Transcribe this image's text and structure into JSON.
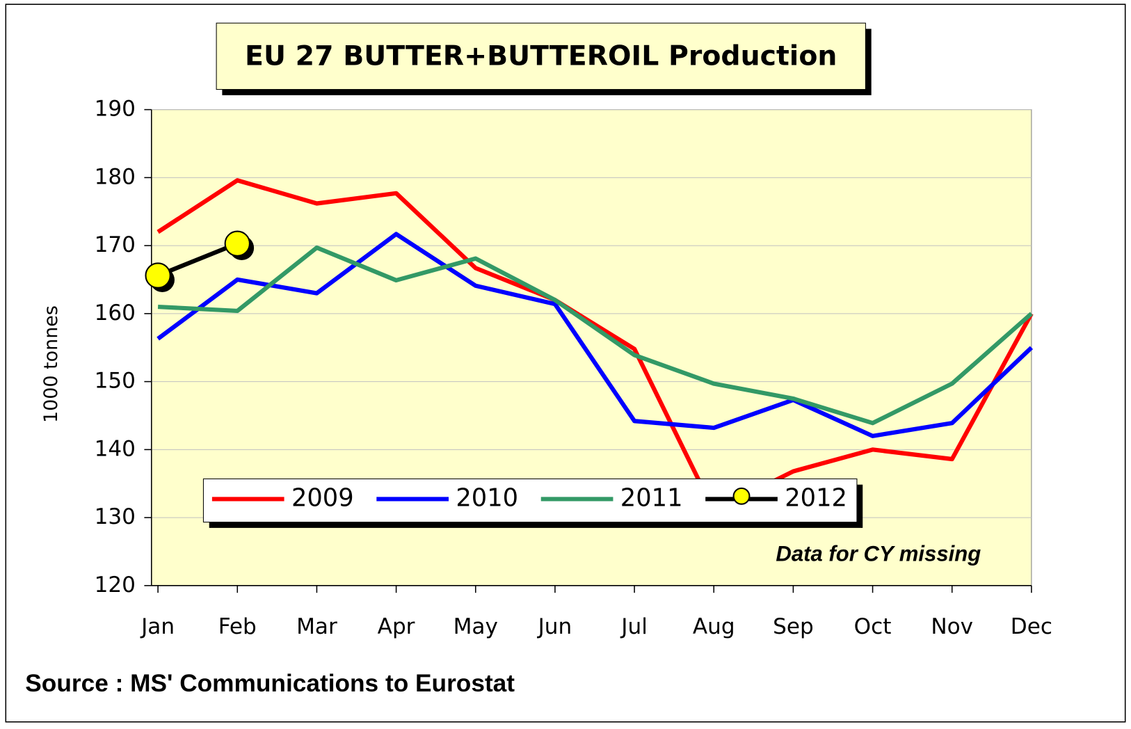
{
  "chart_data": {
    "type": "line",
    "title": "EU 27 BUTTER+BUTTEROIL Production",
    "y_label": "1000 tonnes",
    "annotation": "Data for CY missing",
    "source": "Source : MS' Communications to Eurostat",
    "categories": [
      "Jan",
      "Feb",
      "Mar",
      "Apr",
      "May",
      "Jun",
      "Jul",
      "Aug",
      "Sep",
      "Oct",
      "Nov",
      "Dec"
    ],
    "series": [
      {
        "name": "2009",
        "color": "#ff0000",
        "values": [
          172,
          179.6,
          176.2,
          177.7,
          166.7,
          162,
          154.8,
          131,
          136.8,
          140,
          138.6,
          160
        ]
      },
      {
        "name": "2010",
        "color": "#0000ff",
        "values": [
          156.3,
          165,
          163,
          171.7,
          164.1,
          161.4,
          144.2,
          143.2,
          147.3,
          142,
          143.9,
          155
        ]
      },
      {
        "name": "2011",
        "color": "#339966",
        "values": [
          161,
          160.4,
          169.7,
          164.9,
          168.1,
          162,
          153.9,
          149.7,
          147.5,
          143.9,
          149.7,
          160
        ]
      },
      {
        "name": "2012",
        "color": "#000000",
        "marker_color": "#ffff00",
        "values": [
          165.6,
          170.3,
          null,
          null,
          null,
          null,
          null,
          null,
          null,
          null,
          null,
          null
        ]
      }
    ],
    "ylim": [
      120,
      190
    ],
    "yticks": [
      120,
      130,
      140,
      150,
      160,
      170,
      180,
      190
    ],
    "grid": true,
    "plot_background": "#ffffcc"
  }
}
